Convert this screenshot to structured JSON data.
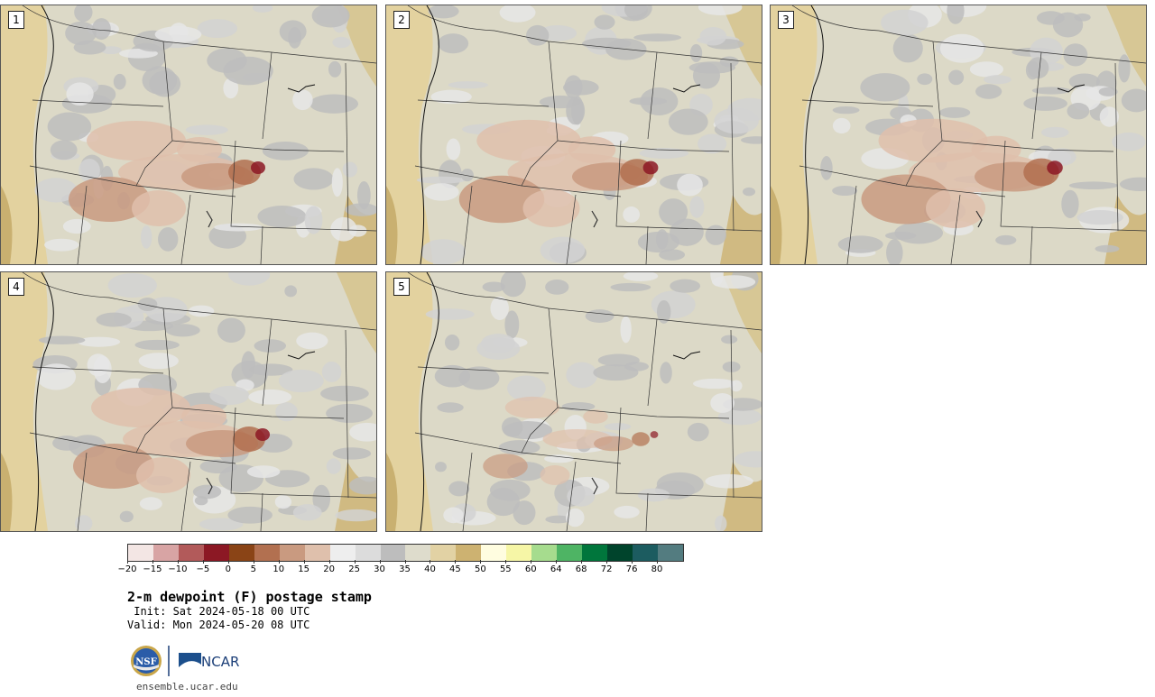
{
  "panels": [
    {
      "id": "1",
      "label": "1"
    },
    {
      "id": "2",
      "label": "2"
    },
    {
      "id": "3",
      "label": "3"
    },
    {
      "id": "4",
      "label": "4"
    },
    {
      "id": "5",
      "label": "5"
    }
  ],
  "colorbar": {
    "colors": [
      "#f3e6e4",
      "#d8a4a4",
      "#b25a5a",
      "#8c1824",
      "#8a4416",
      "#b27050",
      "#c99a80",
      "#dfc0ac",
      "#eeeeee",
      "#dcdcdc",
      "#bdbdbd",
      "#dedccc",
      "#e2d2a4",
      "#cdb271",
      "#fffde0",
      "#f6f6a6",
      "#a6dc8e",
      "#4eb464",
      "#00763c",
      "#00442c",
      "#1c5c60",
      "#537c80"
    ],
    "tick_labels": [
      "−20",
      "−15",
      "−10",
      "−5",
      "0",
      "5",
      "10",
      "15",
      "20",
      "25",
      "30",
      "35",
      "40",
      "45",
      "50",
      "55",
      "60",
      "64",
      "68",
      "72",
      "76",
      "80"
    ]
  },
  "title": "2-m dewpoint (F) postage stamp",
  "init": " Init: Sat 2024-05-18 00 UTC",
  "valid": "Valid: Mon 2024-05-20 08 UTC",
  "logos": {
    "nsf": "NSF",
    "ncar": "NCAR"
  },
  "site": "ensemble.ucar.edu"
}
